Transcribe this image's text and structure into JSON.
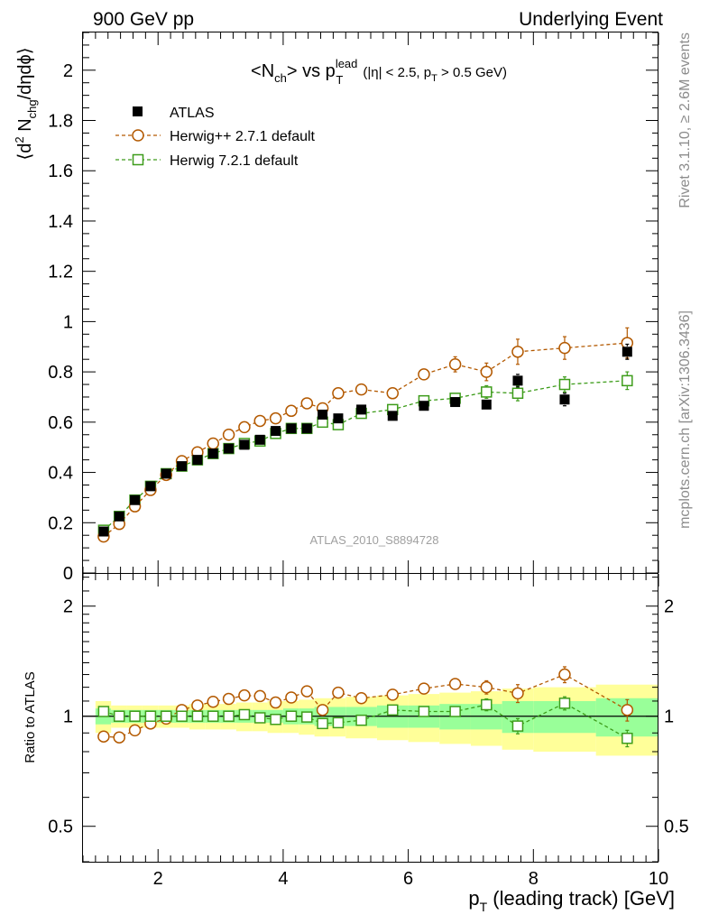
{
  "header": {
    "left": "900 GeV pp",
    "right": "Underlying Event"
  },
  "side_labels": {
    "rivet": "Rivet 3.1.10, ≥ 2.6M events",
    "mcplots": "mcplots.cern.ch [arXiv:1306.3436]"
  },
  "main_title": {
    "lhs": "<N",
    "lhs_sub": "ch",
    "mid": "> vs p",
    "p_sup": "lead",
    "p_sub": "T",
    "cuts_a": "(|η| < 2.5, p",
    "cuts_sub": "T",
    "cuts_b": " > 0.5 GeV)"
  },
  "y_label": {
    "a": "⟨d",
    "sup": "2",
    "b": " N",
    "sub": "chg",
    "c": "/dηdϕ⟩"
  },
  "ratio_ylabel": "Ratio to ATLAS",
  "x_label": {
    "a": "p",
    "sub": "T",
    "b": " (leading track) [GeV]"
  },
  "watermark": "ATLAS_2010_S8894728",
  "legend": {
    "atlas": "ATLAS",
    "herwigpp": "Herwig++ 2.7.1 default",
    "herwig7": "Herwig 7.2.1 default"
  },
  "colors": {
    "atlas": "#000000",
    "herwigpp": "#b35900",
    "herwig7": "#3d9c1a",
    "band_inner": "#99ff99",
    "band_outer": "#ffff99"
  },
  "chart_data": [
    {
      "type": "scatter",
      "panel": "main",
      "xlim": [
        0.8,
        10.0
      ],
      "ylim": [
        0,
        2.15
      ],
      "x_ticks": [
        2,
        4,
        6,
        8,
        10
      ],
      "y_ticks": [
        0,
        0.2,
        0.4,
        0.6,
        0.8,
        1,
        1.2,
        1.4,
        1.6,
        1.8,
        2
      ],
      "y_tick_labels": [
        "0",
        "0.2",
        "0.4",
        "0.6",
        "0.8",
        "1",
        "1.2",
        "1.4",
        "1.6",
        "1.8",
        "2"
      ],
      "x": [
        1.13,
        1.38,
        1.63,
        1.88,
        2.13,
        2.38,
        2.63,
        2.88,
        3.13,
        3.38,
        3.63,
        3.88,
        4.13,
        4.38,
        4.63,
        4.88,
        5.25,
        5.75,
        6.25,
        6.75,
        7.25,
        7.75,
        8.5,
        9.5
      ],
      "series": [
        {
          "name": "ATLAS",
          "marker": "filled-square",
          "values": [
            0.165,
            0.225,
            0.29,
            0.345,
            0.395,
            0.425,
            0.45,
            0.475,
            0.495,
            0.51,
            0.53,
            0.565,
            0.575,
            0.575,
            0.63,
            0.615,
            0.65,
            0.625,
            0.665,
            0.68,
            0.67,
            0.765,
            0.69,
            0.88
          ],
          "errors": [
            0.005,
            0.005,
            0.005,
            0.005,
            0.005,
            0.005,
            0.005,
            0.006,
            0.006,
            0.007,
            0.007,
            0.008,
            0.008,
            0.009,
            0.01,
            0.01,
            0.012,
            0.013,
            0.015,
            0.018,
            0.02,
            0.025,
            0.025,
            0.03
          ]
        },
        {
          "name": "Herwig++ 2.7.1 default",
          "marker": "open-circle",
          "values": [
            0.145,
            0.195,
            0.265,
            0.33,
            0.39,
            0.445,
            0.48,
            0.515,
            0.55,
            0.58,
            0.605,
            0.615,
            0.645,
            0.675,
            0.655,
            0.715,
            0.73,
            0.715,
            0.79,
            0.83,
            0.8,
            0.88,
            0.895,
            0.915
          ],
          "errors": [
            0.004,
            0.004,
            0.004,
            0.004,
            0.004,
            0.005,
            0.005,
            0.005,
            0.006,
            0.006,
            0.007,
            0.007,
            0.008,
            0.009,
            0.01,
            0.011,
            0.012,
            0.015,
            0.02,
            0.03,
            0.035,
            0.05,
            0.045,
            0.06
          ]
        },
        {
          "name": "Herwig 7.2.1 default",
          "marker": "open-square",
          "values": [
            0.17,
            0.225,
            0.29,
            0.345,
            0.395,
            0.425,
            0.45,
            0.475,
            0.495,
            0.515,
            0.525,
            0.555,
            0.575,
            0.575,
            0.6,
            0.59,
            0.635,
            0.65,
            0.685,
            0.695,
            0.72,
            0.715,
            0.75,
            0.765
          ],
          "errors": [
            0.004,
            0.004,
            0.004,
            0.004,
            0.004,
            0.005,
            0.005,
            0.005,
            0.006,
            0.006,
            0.007,
            0.007,
            0.008,
            0.009,
            0.01,
            0.011,
            0.012,
            0.015,
            0.018,
            0.02,
            0.025,
            0.03,
            0.03,
            0.035
          ]
        }
      ]
    },
    {
      "type": "scatter",
      "panel": "ratio",
      "y_scale": "log",
      "ylim": [
        0.4,
        2.45
      ],
      "y_ticks": [
        0.5,
        1,
        2
      ],
      "y_tick_labels": [
        "0.5",
        "1",
        "2"
      ],
      "band_x_edges": [
        1.0,
        1.25,
        1.5,
        1.75,
        2.0,
        2.25,
        2.5,
        2.75,
        3.0,
        3.25,
        3.5,
        3.75,
        4.0,
        4.25,
        4.5,
        4.75,
        5.0,
        5.5,
        6.0,
        6.5,
        7.0,
        7.5,
        8.0,
        9.0,
        10.0
      ],
      "band_inner_halfwidth": [
        0.05,
        0.04,
        0.04,
        0.04,
        0.04,
        0.04,
        0.04,
        0.04,
        0.04,
        0.04,
        0.04,
        0.04,
        0.05,
        0.05,
        0.06,
        0.06,
        0.06,
        0.07,
        0.07,
        0.08,
        0.08,
        0.1,
        0.1,
        0.12
      ],
      "band_outer_halfwidth": [
        0.1,
        0.07,
        0.07,
        0.07,
        0.07,
        0.07,
        0.08,
        0.08,
        0.08,
        0.09,
        0.09,
        0.1,
        0.1,
        0.11,
        0.12,
        0.12,
        0.13,
        0.14,
        0.15,
        0.16,
        0.17,
        0.19,
        0.2,
        0.22
      ],
      "series": [
        {
          "name": "Herwig++ 2.7.1 default",
          "values": [
            0.88,
            0.875,
            0.915,
            0.955,
            0.985,
            1.04,
            1.07,
            1.095,
            1.115,
            1.14,
            1.135,
            1.09,
            1.125,
            1.17,
            1.04,
            1.16,
            1.12,
            1.145,
            1.19,
            1.225,
            1.2,
            1.155,
            1.3,
            1.04
          ],
          "errors": [
            0.01,
            0.01,
            0.01,
            0.01,
            0.01,
            0.01,
            0.01,
            0.01,
            0.01,
            0.012,
            0.012,
            0.012,
            0.012,
            0.015,
            0.015,
            0.018,
            0.02,
            0.022,
            0.03,
            0.04,
            0.05,
            0.065,
            0.065,
            0.07
          ]
        },
        {
          "name": "Herwig 7.2.1 default",
          "values": [
            1.03,
            1.0,
            1.0,
            1.0,
            1.0,
            1.0,
            1.0,
            1.0,
            1.0,
            1.01,
            0.99,
            0.98,
            1.0,
            0.995,
            0.955,
            0.96,
            0.975,
            1.04,
            1.03,
            1.03,
            1.075,
            0.94,
            1.085,
            0.87
          ],
          "errors": [
            0.01,
            0.01,
            0.01,
            0.01,
            0.01,
            0.01,
            0.01,
            0.01,
            0.01,
            0.012,
            0.012,
            0.012,
            0.012,
            0.015,
            0.015,
            0.018,
            0.02,
            0.022,
            0.03,
            0.035,
            0.04,
            0.045,
            0.045,
            0.045
          ]
        }
      ]
    }
  ]
}
